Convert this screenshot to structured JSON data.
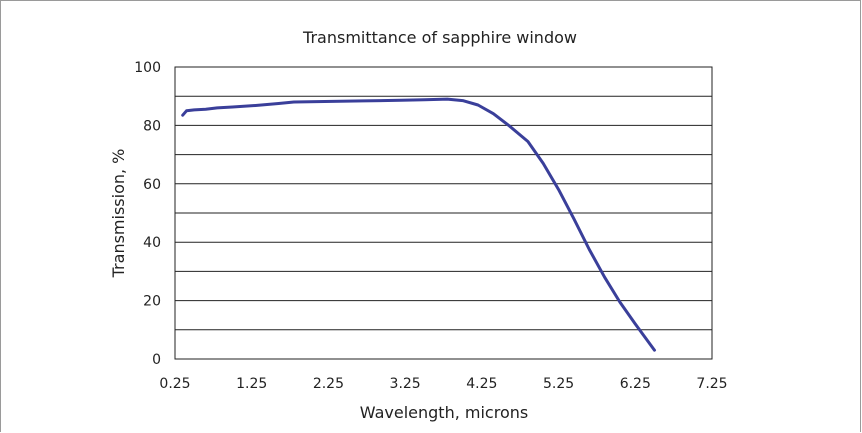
{
  "chart_data": {
    "type": "line",
    "title": "Transmittance of sapphire window",
    "xlabel": "Wavelength, microns",
    "ylabel": "Transmission, %",
    "xlim": [
      0.25,
      7.25
    ],
    "ylim": [
      0,
      100
    ],
    "xticks": [
      0.25,
      1.25,
      2.25,
      3.25,
      4.25,
      5.25,
      6.25,
      7.25
    ],
    "xtick_labels": [
      "0.25",
      "1.25",
      "2.25",
      "3.25",
      "4.25",
      "5.25",
      "6.25",
      "7.25"
    ],
    "yticks": [
      0,
      20,
      40,
      60,
      80,
      100
    ],
    "ytick_labels": [
      "0",
      "20",
      "40",
      "60",
      "80",
      "100"
    ],
    "ygrid_step": 10,
    "grid": "horizontal",
    "line_color": "#3a3f9a",
    "series": [
      {
        "x": [
          0.35,
          0.4,
          0.5,
          0.65,
          0.8,
          1.0,
          1.3,
          1.6,
          1.8,
          2.2,
          2.7,
          3.2,
          3.5,
          3.8,
          4.0,
          4.2,
          4.4,
          4.6,
          4.85,
          5.05,
          5.25,
          5.45,
          5.65,
          5.85,
          6.05,
          6.25,
          6.5
        ],
        "y": [
          83.5,
          85,
          85.3,
          85.5,
          86,
          86.3,
          86.8,
          87.5,
          88,
          88.2,
          88.4,
          88.6,
          88.8,
          89,
          88.5,
          87,
          84,
          80,
          74.5,
          67,
          58,
          48,
          37.5,
          28,
          19.5,
          12,
          3
        ]
      }
    ]
  }
}
